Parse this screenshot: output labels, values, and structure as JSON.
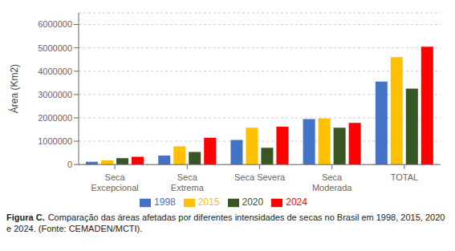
{
  "chart_data": {
    "type": "bar",
    "categories": [
      "Seca\nExcepcional",
      "Seca\nExtrema",
      "Seca Severa",
      "Seca\nModerada",
      "TOTAL"
    ],
    "series": [
      {
        "name": "1998",
        "color": "#4472C4",
        "values": [
          120000,
          380000,
          1050000,
          1950000,
          3550000
        ]
      },
      {
        "name": "2015",
        "color": "#FFC000",
        "values": [
          180000,
          780000,
          1580000,
          1970000,
          4600000
        ]
      },
      {
        "name": "2020",
        "color": "#375623",
        "values": [
          270000,
          540000,
          720000,
          1580000,
          3250000
        ]
      },
      {
        "name": "2024",
        "color": "#FF0000",
        "values": [
          330000,
          1150000,
          1620000,
          1780000,
          5050000
        ]
      }
    ],
    "ylabel": "Área (Km2)",
    "ylim": [
      0,
      6500000
    ],
    "yticks": [
      0,
      1000000,
      2000000,
      3000000,
      4000000,
      5000000,
      6000000
    ],
    "grid": true,
    "legend": "bottom",
    "annotations": [
      "Figura C.",
      "Comparação das áreas afetadas por diferentes intensidades de secas no Brasil em 1998, 2015, 2020 e 2024. (Fonte: CEMADEN/MCTI)."
    ]
  }
}
